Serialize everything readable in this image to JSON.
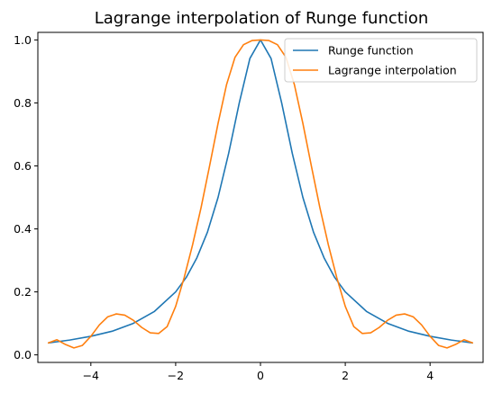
{
  "chart_data": {
    "type": "line",
    "title": "Lagrange interpolation of Runge function",
    "xlabel": "",
    "ylabel": "",
    "xlim": [
      -5.25,
      5.25
    ],
    "ylim": [
      -0.024,
      1.024
    ],
    "x_ticks": [
      -4,
      -2,
      0,
      2,
      4
    ],
    "x_tick_labels": [
      "−4",
      "−2",
      "0",
      "2",
      "4"
    ],
    "y_ticks": [
      0.0,
      0.2,
      0.4,
      0.6,
      0.8,
      1.0
    ],
    "y_tick_labels": [
      "0.0",
      "0.2",
      "0.4",
      "0.6",
      "0.8",
      "1.0"
    ],
    "grid": false,
    "legend_position": "top-right",
    "series": [
      {
        "name": "Runge function",
        "color": "#1f77b4",
        "x": [
          -5,
          -4.5,
          -4,
          -3.5,
          -3,
          -2.5,
          -2,
          -1.75,
          -1.5,
          -1.25,
          -1,
          -0.75,
          -0.5,
          -0.25,
          0,
          0.25,
          0.5,
          0.75,
          1,
          1.25,
          1.5,
          1.75,
          2,
          2.5,
          3,
          3.5,
          4,
          4.5,
          5
        ],
        "y": [
          0.038,
          0.047,
          0.059,
          0.075,
          0.1,
          0.138,
          0.2,
          0.246,
          0.308,
          0.39,
          0.5,
          0.64,
          0.8,
          0.941,
          1.0,
          0.941,
          0.8,
          0.64,
          0.5,
          0.39,
          0.308,
          0.246,
          0.2,
          0.138,
          0.1,
          0.075,
          0.059,
          0.047,
          0.038
        ]
      },
      {
        "name": "Lagrange interpolation",
        "color": "#ff7f0e",
        "x": [
          -5,
          -4.8,
          -4.6,
          -4.4,
          -4.2,
          -4,
          -3.8,
          -3.6,
          -3.4,
          -3.2,
          -3,
          -2.8,
          -2.6,
          -2.4,
          -2.2,
          -2,
          -1.8,
          -1.6,
          -1.4,
          -1.2,
          -1,
          -0.8,
          -0.6,
          -0.4,
          -0.2,
          0,
          0.2,
          0.4,
          0.6,
          0.8,
          1,
          1.2,
          1.4,
          1.6,
          1.8,
          2,
          2.2,
          2.4,
          2.6,
          2.8,
          3,
          3.2,
          3.4,
          3.6,
          3.8,
          4,
          4.2,
          4.4,
          4.6,
          4.8,
          5
        ],
        "y": [
          0.038,
          0.048,
          0.033,
          0.022,
          0.03,
          0.059,
          0.095,
          0.121,
          0.13,
          0.126,
          0.11,
          0.087,
          0.07,
          0.068,
          0.09,
          0.154,
          0.245,
          0.35,
          0.468,
          0.6,
          0.735,
          0.858,
          0.945,
          0.985,
          0.998,
          1.0,
          0.998,
          0.985,
          0.945,
          0.858,
          0.735,
          0.6,
          0.468,
          0.35,
          0.245,
          0.154,
          0.09,
          0.068,
          0.07,
          0.087,
          0.11,
          0.126,
          0.13,
          0.121,
          0.095,
          0.059,
          0.03,
          0.022,
          0.033,
          0.048,
          0.038
        ]
      }
    ]
  }
}
